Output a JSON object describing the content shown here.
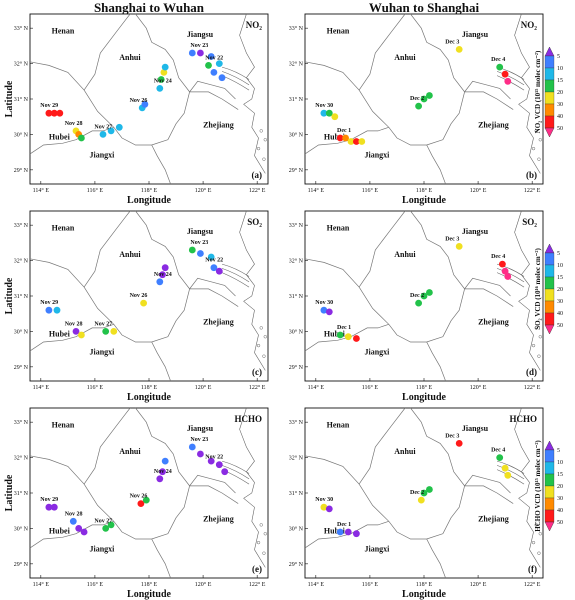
{
  "column_titles": [
    "Shanghai to Wuhan",
    "Wuhan to Shanghai"
  ],
  "x_axis_label": "Longitude",
  "y_axis_label": "Latitude",
  "lon_ticks": [
    "114° E",
    "116° E",
    "118° E",
    "120° E",
    "122° E"
  ],
  "lat_ticks": [
    "29° N",
    "30° N",
    "31° N",
    "32° N",
    "33° N"
  ],
  "provinces": [
    "Henan",
    "Anhui",
    "Jiangsu",
    "Hubei",
    "Jiangxi",
    "Zhejiang"
  ],
  "colorbar": {
    "ticks": [
      "5",
      "10",
      "15",
      "20",
      "30",
      "40",
      "50"
    ],
    "colors": [
      "#8a2be2",
      "#3f7fff",
      "#1fb8e8",
      "#22c24a",
      "#f0e020",
      "#ff8a00",
      "#ff1a1a",
      "#ff2d87"
    ],
    "titles": [
      "NO₂ VCD (10¹⁵ molec cm⁻²)",
      "SO₂ VCD (10¹⁶ molec cm⁻²)",
      "HCHO VCD (10¹⁵ molec cm⁻²)"
    ]
  },
  "chart_data": {
    "type": "scatter",
    "extent": {
      "lon": [
        113.6,
        122.4
      ],
      "lat": [
        28.6,
        33.4
      ]
    },
    "panels": [
      {
        "label": "(a)",
        "gas": "NO₂",
        "direction": "Shanghai to Wuhan",
        "days": [
          {
            "name": "Nov 23",
            "lon": 120.05,
            "lat": 32.25,
            "points": [
              [
                119.6,
                32.3,
                "#3f7fff"
              ],
              [
                119.9,
                32.3,
                "#8a2be2"
              ],
              [
                120.3,
                32.2,
                "#3f7fff"
              ],
              [
                120.6,
                32.0,
                "#1fb8e8"
              ]
            ]
          },
          {
            "name": "Nov 22",
            "lon": 120.6,
            "lat": 31.75,
            "points": [
              [
                120.2,
                31.95,
                "#22c24a"
              ],
              [
                120.4,
                31.75,
                "#3f7fff"
              ],
              [
                120.7,
                31.6,
                "#3f7fff"
              ]
            ]
          },
          {
            "name": "Nov 24",
            "lon": 118.7,
            "lat": 31.55,
            "points": [
              [
                118.4,
                31.3,
                "#1fb8e8"
              ],
              [
                118.45,
                31.55,
                "#22c24a"
              ],
              [
                118.55,
                31.75,
                "#f0e020"
              ],
              [
                118.6,
                31.9,
                "#1fb8e8"
              ]
            ]
          },
          {
            "name": "Nov 26",
            "lon": 117.8,
            "lat": 30.65,
            "points": [
              [
                117.75,
                30.75,
                "#1fb8e8"
              ],
              [
                117.85,
                30.85,
                "#3f7fff"
              ]
            ]
          },
          {
            "name": "Nov 27",
            "lon": 116.5,
            "lat": 30.0,
            "points": [
              [
                116.3,
                30.0,
                "#1fb8e8"
              ],
              [
                116.6,
                30.1,
                "#1fb8e8"
              ],
              [
                116.9,
                30.2,
                "#1fb8e8"
              ]
            ]
          },
          {
            "name": "Nov 28",
            "lon": 115.4,
            "lat": 30.0,
            "points": [
              [
                115.3,
                30.1,
                "#f0e020"
              ],
              [
                115.4,
                30.0,
                "#ff8a00"
              ],
              [
                115.5,
                29.9,
                "#22c24a"
              ]
            ]
          },
          {
            "name": "Nov 29",
            "lon": 114.5,
            "lat": 30.6,
            "points": [
              [
                114.3,
                30.6,
                "#ff1a1a"
              ],
              [
                114.5,
                30.6,
                "#ff1a1a"
              ],
              [
                114.7,
                30.6,
                "#ff1a1a"
              ]
            ]
          }
        ]
      },
      {
        "label": "(b)",
        "gas": "NO₂",
        "direction": "Wuhan to Shanghai",
        "days": [
          {
            "name": "Dec 3",
            "lon": 119.3,
            "lat": 32.4,
            "points": [
              [
                119.3,
                32.4,
                "#f0e020"
              ]
            ]
          },
          {
            "name": "Dec 4",
            "lon": 121.0,
            "lat": 31.7,
            "points": [
              [
                120.8,
                31.9,
                "#22c24a"
              ],
              [
                121.0,
                31.7,
                "#ff1a1a"
              ],
              [
                121.1,
                31.5,
                "#ff2d87"
              ]
            ]
          },
          {
            "name": "Dec 2",
            "lon": 118.0,
            "lat": 31.0,
            "points": [
              [
                117.8,
                30.8,
                "#22c24a"
              ],
              [
                118.0,
                31.0,
                "#22c24a"
              ],
              [
                118.2,
                31.1,
                "#22c24a"
              ]
            ]
          },
          {
            "name": "Nov 30",
            "lon": 114.5,
            "lat": 30.6,
            "points": [
              [
                114.3,
                30.6,
                "#1fb8e8"
              ],
              [
                114.5,
                30.6,
                "#22c24a"
              ],
              [
                114.7,
                30.5,
                "#f0e020"
              ]
            ]
          },
          {
            "name": "Dec 1",
            "lon": 115.3,
            "lat": 29.9,
            "points": [
              [
                114.9,
                29.9,
                "#ff1a1a"
              ],
              [
                115.1,
                29.9,
                "#ff8a00"
              ],
              [
                115.3,
                29.8,
                "#f0e020"
              ],
              [
                115.5,
                29.8,
                "#ff1a1a"
              ],
              [
                115.7,
                29.8,
                "#f0e020"
              ]
            ]
          }
        ]
      },
      {
        "label": "(c)",
        "gas": "SO₂",
        "direction": "Shanghai to Wuhan",
        "days": [
          {
            "name": "Nov 23",
            "lon": 120.05,
            "lat": 32.25,
            "points": [
              [
                119.6,
                32.3,
                "#22c24a"
              ],
              [
                119.9,
                32.2,
                "#3f7fff"
              ],
              [
                120.3,
                32.1,
                "#1fb8e8"
              ]
            ]
          },
          {
            "name": "Nov 22",
            "lon": 120.6,
            "lat": 31.75,
            "points": [
              [
                120.4,
                31.8,
                "#3f7fff"
              ],
              [
                120.6,
                31.7,
                "#8a2be2"
              ]
            ]
          },
          {
            "name": "Nov 24",
            "lon": 118.7,
            "lat": 31.55,
            "points": [
              [
                118.4,
                31.4,
                "#3f7fff"
              ],
              [
                118.5,
                31.6,
                "#8a2be2"
              ],
              [
                118.6,
                31.8,
                "#8a2be2"
              ]
            ]
          },
          {
            "name": "Nov 26",
            "lon": 117.8,
            "lat": 30.65,
            "points": [
              [
                117.8,
                30.8,
                "#f0e020"
              ]
            ]
          },
          {
            "name": "Nov 27",
            "lon": 116.5,
            "lat": 30.0,
            "points": [
              [
                116.4,
                30.0,
                "#22c24a"
              ],
              [
                116.7,
                30.0,
                "#f0e020"
              ]
            ]
          },
          {
            "name": "Nov 28",
            "lon": 115.4,
            "lat": 30.0,
            "points": [
              [
                115.3,
                30.0,
                "#8a2be2"
              ],
              [
                115.5,
                29.9,
                "#f0e020"
              ]
            ]
          },
          {
            "name": "Nov 29",
            "lon": 114.5,
            "lat": 30.6,
            "points": [
              [
                114.3,
                30.6,
                "#3f7fff"
              ],
              [
                114.6,
                30.6,
                "#1fb8e8"
              ]
            ]
          }
        ]
      },
      {
        "label": "(d)",
        "gas": "SO₂",
        "direction": "Wuhan to Shanghai",
        "days": [
          {
            "name": "Dec 3",
            "lon": 119.3,
            "lat": 32.4,
            "points": [
              [
                119.3,
                32.4,
                "#f0e020"
              ]
            ]
          },
          {
            "name": "Dec 4",
            "lon": 121.0,
            "lat": 31.7,
            "points": [
              [
                120.9,
                31.9,
                "#ff1a1a"
              ],
              [
                121.0,
                31.7,
                "#ff2d87"
              ],
              [
                121.1,
                31.55,
                "#ff2d87"
              ]
            ]
          },
          {
            "name": "Dec 2",
            "lon": 118.0,
            "lat": 31.0,
            "points": [
              [
                117.8,
                30.8,
                "#22c24a"
              ],
              [
                118.0,
                31.0,
                "#22c24a"
              ],
              [
                118.2,
                31.1,
                "#22c24a"
              ]
            ]
          },
          {
            "name": "Nov 30",
            "lon": 114.5,
            "lat": 30.6,
            "points": [
              [
                114.3,
                30.6,
                "#3f7fff"
              ],
              [
                114.5,
                30.55,
                "#8a2be2"
              ]
            ]
          },
          {
            "name": "Dec 1",
            "lon": 115.3,
            "lat": 29.9,
            "points": [
              [
                114.9,
                29.9,
                "#22c24a"
              ],
              [
                115.2,
                29.85,
                "#f0e020"
              ],
              [
                115.5,
                29.8,
                "#ff1a1a"
              ]
            ]
          }
        ]
      },
      {
        "label": "(e)",
        "gas": "HCHO",
        "direction": "Shanghai to Wuhan",
        "days": [
          {
            "name": "Nov 23",
            "lon": 120.05,
            "lat": 32.25,
            "points": [
              [
                119.6,
                32.3,
                "#3f7fff"
              ],
              [
                119.9,
                32.1,
                "#8a2be2"
              ],
              [
                120.3,
                31.9,
                "#8a2be2"
              ]
            ]
          },
          {
            "name": "Nov 22",
            "lon": 120.6,
            "lat": 31.75,
            "points": [
              [
                120.6,
                31.8,
                "#8a2be2"
              ],
              [
                120.8,
                31.6,
                "#8a2be2"
              ]
            ]
          },
          {
            "name": "Nov 24",
            "lon": 118.7,
            "lat": 31.55,
            "points": [
              [
                118.4,
                31.4,
                "#8a2be2"
              ],
              [
                118.5,
                31.6,
                "#8a2be2"
              ],
              [
                118.6,
                31.9,
                "#3f7fff"
              ]
            ]
          },
          {
            "name": "Nov 26",
            "lon": 117.8,
            "lat": 30.65,
            "points": [
              [
                117.7,
                30.7,
                "#ff1a1a"
              ],
              [
                117.9,
                30.8,
                "#22c24a"
              ]
            ]
          },
          {
            "name": "Nov 27",
            "lon": 116.5,
            "lat": 30.0,
            "points": [
              [
                116.4,
                30.0,
                "#22c24a"
              ],
              [
                116.6,
                30.1,
                "#22c24a"
              ]
            ]
          },
          {
            "name": "Nov 28",
            "lon": 115.4,
            "lat": 30.0,
            "points": [
              [
                115.2,
                30.2,
                "#3f7fff"
              ],
              [
                115.4,
                30.0,
                "#8a2be2"
              ],
              [
                115.6,
                29.9,
                "#8a2be2"
              ]
            ]
          },
          {
            "name": "Nov 29",
            "lon": 114.5,
            "lat": 30.6,
            "points": [
              [
                114.3,
                30.6,
                "#8a2be2"
              ],
              [
                114.5,
                30.6,
                "#8a2be2"
              ]
            ]
          }
        ]
      },
      {
        "label": "(f)",
        "gas": "HCHO",
        "direction": "Wuhan to Shanghai",
        "days": [
          {
            "name": "Dec 3",
            "lon": 119.3,
            "lat": 32.4,
            "points": [
              [
                119.3,
                32.4,
                "#ff1a1a"
              ]
            ]
          },
          {
            "name": "Dec 4",
            "lon": 121.0,
            "lat": 31.7,
            "points": [
              [
                120.8,
                32.0,
                "#22c24a"
              ],
              [
                121.0,
                31.7,
                "#f0e020"
              ],
              [
                121.1,
                31.5,
                "#f0e020"
              ]
            ]
          },
          {
            "name": "Dec 2",
            "lon": 118.0,
            "lat": 31.0,
            "points": [
              [
                117.9,
                30.8,
                "#f0e020"
              ],
              [
                118.0,
                31.0,
                "#22c24a"
              ],
              [
                118.2,
                31.1,
                "#22c24a"
              ]
            ]
          },
          {
            "name": "Nov 30",
            "lon": 114.5,
            "lat": 30.6,
            "points": [
              [
                114.3,
                30.6,
                "#f0e020"
              ],
              [
                114.5,
                30.55,
                "#8a2be2"
              ]
            ]
          },
          {
            "name": "Dec 1",
            "lon": 115.3,
            "lat": 29.9,
            "points": [
              [
                114.9,
                29.9,
                "#3f7fff"
              ],
              [
                115.2,
                29.9,
                "#8a2be2"
              ],
              [
                115.5,
                29.85,
                "#8a2be2"
              ]
            ]
          }
        ]
      }
    ]
  }
}
